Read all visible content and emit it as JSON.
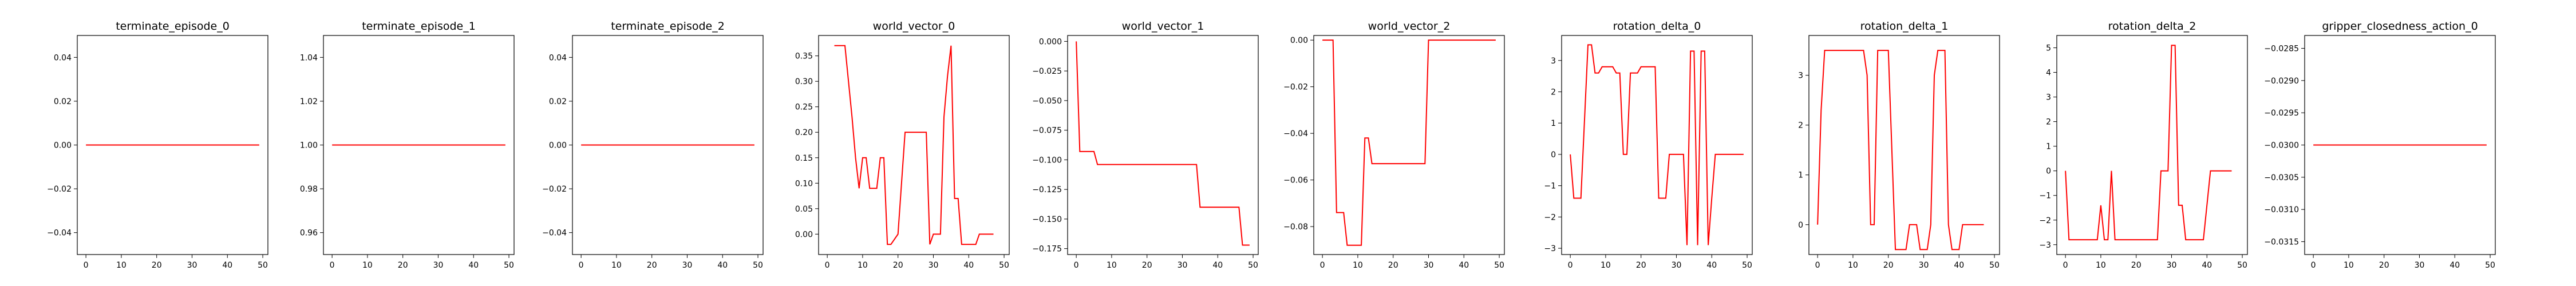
{
  "chart_data": [
    {
      "type": "line",
      "title": "terminate_episode_0",
      "ylim": [
        -0.05,
        0.05
      ],
      "yticks": [
        -0.04,
        -0.02,
        0.0,
        0.02,
        0.04
      ],
      "ytick_labels": [
        "−0.04",
        "−0.02",
        "0.00",
        "0.02",
        "0.04"
      ],
      "xlim": [
        -2.45,
        51.45
      ],
      "xticks": [
        0,
        10,
        20,
        30,
        40,
        50
      ],
      "xtick_labels": [
        "0",
        "10",
        "20",
        "30",
        "40",
        "50"
      ],
      "line_color": "#ff0000",
      "x": [
        0,
        49
      ],
      "y": [
        0,
        0
      ]
    },
    {
      "type": "line",
      "title": "terminate_episode_1",
      "ylim": [
        0.95,
        1.05
      ],
      "yticks": [
        0.96,
        0.98,
        1.0,
        1.02,
        1.04
      ],
      "ytick_labels": [
        "0.96",
        "0.98",
        "1.00",
        "1.02",
        "1.04"
      ],
      "xlim": [
        -2.45,
        51.45
      ],
      "xticks": [
        0,
        10,
        20,
        30,
        40,
        50
      ],
      "xtick_labels": [
        "0",
        "10",
        "20",
        "30",
        "40",
        "50"
      ],
      "line_color": "#ff0000",
      "x": [
        0,
        49
      ],
      "y": [
        1,
        1
      ]
    },
    {
      "type": "line",
      "title": "terminate_episode_2",
      "ylim": [
        -0.05,
        0.05
      ],
      "yticks": [
        -0.04,
        -0.02,
        0.0,
        0.02,
        0.04
      ],
      "ytick_labels": [
        "−0.04",
        "−0.02",
        "0.00",
        "0.02",
        "0.04"
      ],
      "xlim": [
        -2.45,
        51.45
      ],
      "xticks": [
        0,
        10,
        20,
        30,
        40,
        50
      ],
      "xtick_labels": [
        "0",
        "10",
        "20",
        "30",
        "40",
        "50"
      ],
      "line_color": "#ff0000",
      "x": [
        0,
        49
      ],
      "y": [
        0,
        0
      ]
    },
    {
      "type": "line",
      "title": "world_vector_0",
      "ylim": [
        -0.04,
        0.39
      ],
      "yticks": [
        0.0,
        0.05,
        0.1,
        0.15,
        0.2,
        0.25,
        0.3,
        0.35
      ],
      "ytick_labels": [
        "0.00",
        "0.05",
        "0.10",
        "0.15",
        "0.20",
        "0.25",
        "0.30",
        "0.35"
      ],
      "xlim": [
        -2.45,
        51.45
      ],
      "xticks": [
        0,
        10,
        20,
        30,
        40,
        50
      ],
      "xtick_labels": [
        "0",
        "10",
        "20",
        "30",
        "40",
        "50"
      ],
      "line_color": "#ff0000",
      "x": [
        2,
        5,
        7,
        8,
        9,
        10,
        11,
        12,
        13,
        14,
        15,
        16,
        17,
        18,
        20,
        22,
        25,
        26,
        27,
        28,
        29,
        30,
        31,
        32,
        33,
        34,
        35,
        36,
        37,
        38,
        39,
        40,
        41,
        42,
        43,
        44,
        45,
        46,
        47
      ],
      "y": [
        0.37,
        0.37,
        0.23,
        0.15,
        0.09,
        0.15,
        0.15,
        0.09,
        0.09,
        0.09,
        0.15,
        0.15,
        -0.02,
        -0.02,
        0.0,
        0.2,
        0.2,
        0.2,
        0.2,
        0.2,
        -0.02,
        0.0,
        0.0,
        0.0,
        0.23,
        0.31,
        0.37,
        0.07,
        0.07,
        -0.02,
        -0.02,
        -0.02,
        -0.02,
        -0.02,
        0.0,
        0.0,
        0.0,
        0.0,
        0.0
      ]
    },
    {
      "type": "line",
      "title": "world_vector_1",
      "ylim": [
        -0.18,
        0.005
      ],
      "yticks": [
        -0.175,
        -0.15,
        -0.125,
        -0.1,
        -0.075,
        -0.05,
        -0.025,
        0.0
      ],
      "ytick_labels": [
        "−0.175",
        "−0.150",
        "−0.125",
        "−0.100",
        "−0.075",
        "−0.050",
        "−0.025",
        "0.000"
      ],
      "xlim": [
        -2.45,
        51.45
      ],
      "xticks": [
        0,
        10,
        20,
        30,
        40,
        50
      ],
      "xtick_labels": [
        "0",
        "10",
        "20",
        "30",
        "40",
        "50"
      ],
      "line_color": "#ff0000",
      "x": [
        0,
        1,
        5,
        6,
        34,
        35,
        46,
        47,
        49
      ],
      "y": [
        0.0,
        -0.093,
        -0.093,
        -0.104,
        -0.104,
        -0.14,
        -0.14,
        -0.172,
        -0.172
      ]
    },
    {
      "type": "line",
      "title": "world_vector_2",
      "ylim": [
        -0.092,
        0.002
      ],
      "yticks": [
        -0.08,
        -0.06,
        -0.04,
        -0.02,
        0.0
      ],
      "ytick_labels": [
        "−0.08",
        "−0.06",
        "−0.04",
        "−0.02",
        "0.00"
      ],
      "xlim": [
        -2.45,
        51.45
      ],
      "xticks": [
        0,
        10,
        20,
        30,
        40,
        50
      ],
      "xtick_labels": [
        "0",
        "10",
        "20",
        "30",
        "40",
        "50"
      ],
      "line_color": "#ff0000",
      "x": [
        0,
        3,
        4,
        6,
        7,
        9,
        10,
        11,
        12,
        13,
        14,
        15,
        29,
        30,
        49
      ],
      "y": [
        0.0,
        0.0,
        -0.074,
        -0.074,
        -0.088,
        -0.088,
        -0.088,
        -0.088,
        -0.042,
        -0.042,
        -0.053,
        -0.053,
        -0.053,
        0.0,
        0.0
      ]
    },
    {
      "type": "line",
      "title": "rotation_delta_0",
      "ylim": [
        -3.2,
        3.8
      ],
      "yticks": [
        -3,
        -2,
        -1,
        0,
        1,
        2,
        3
      ],
      "ytick_labels": [
        "−3",
        "−2",
        "−1",
        "0",
        "1",
        "2",
        "3"
      ],
      "xlim": [
        -2.45,
        51.45
      ],
      "xticks": [
        0,
        10,
        20,
        30,
        40,
        50
      ],
      "xtick_labels": [
        "0",
        "10",
        "20",
        "30",
        "40",
        "50"
      ],
      "line_color": "#ff0000",
      "x": [
        0,
        1,
        2,
        3,
        5,
        6,
        7,
        8,
        9,
        12,
        13,
        14,
        15,
        16,
        17,
        18,
        19,
        20,
        23,
        24,
        25,
        26,
        27,
        28,
        29,
        30,
        31,
        32,
        33,
        34,
        35,
        36,
        37,
        38,
        39,
        40,
        41,
        42,
        43,
        44,
        45,
        46,
        47,
        49
      ],
      "y": [
        0,
        -1.4,
        -1.4,
        -1.4,
        3.5,
        3.5,
        2.6,
        2.6,
        2.8,
        2.8,
        2.6,
        2.6,
        0,
        0,
        2.6,
        2.6,
        2.6,
        2.8,
        2.8,
        2.8,
        -1.4,
        -1.4,
        -1.4,
        0,
        0,
        0,
        0,
        0,
        -2.9,
        3.3,
        3.3,
        -2.9,
        3.3,
        3.3,
        -2.9,
        -1.4,
        0,
        0,
        0,
        0,
        0,
        0,
        0,
        0
      ]
    },
    {
      "type": "line",
      "title": "rotation_delta_1",
      "ylim": [
        -0.6,
        3.8
      ],
      "yticks": [
        0,
        1,
        2,
        3
      ],
      "ytick_labels": [
        "0",
        "1",
        "2",
        "3"
      ],
      "xlim": [
        -2.45,
        51.45
      ],
      "xticks": [
        0,
        10,
        20,
        30,
        40,
        50
      ],
      "xtick_labels": [
        "0",
        "10",
        "20",
        "30",
        "40",
        "50"
      ],
      "line_color": "#ff0000",
      "x": [
        0,
        1,
        2,
        5,
        10,
        13,
        14,
        15,
        16,
        17,
        18,
        19,
        20,
        22,
        23,
        24,
        25,
        26,
        27,
        28,
        29,
        30,
        31,
        32,
        33,
        34,
        35,
        36,
        37,
        38,
        39,
        40,
        41,
        42,
        43,
        44,
        45,
        47
      ],
      "y": [
        0,
        2.3,
        3.5,
        3.5,
        3.5,
        3.5,
        3.0,
        0.0,
        0.0,
        3.5,
        3.5,
        3.5,
        3.5,
        -0.5,
        -0.5,
        -0.5,
        -0.5,
        0.0,
        0.0,
        0.0,
        -0.5,
        -0.5,
        -0.5,
        0.0,
        3.0,
        3.5,
        3.5,
        3.5,
        0.0,
        -0.5,
        -0.5,
        -0.5,
        0.0,
        0.0,
        0.0,
        0.0,
        0.0,
        0.0
      ]
    },
    {
      "type": "line",
      "title": "rotation_delta_2",
      "ylim": [
        -3.4,
        5.5
      ],
      "yticks": [
        -3,
        -2,
        -1,
        0,
        1,
        2,
        3,
        4,
        5
      ],
      "ytick_labels": [
        "−3",
        "−2",
        "−1",
        "0",
        "1",
        "2",
        "3",
        "4",
        "5"
      ],
      "xlim": [
        -2.45,
        51.45
      ],
      "xticks": [
        0,
        10,
        20,
        30,
        40,
        50
      ],
      "xtick_labels": [
        "0",
        "10",
        "20",
        "30",
        "40",
        "50"
      ],
      "line_color": "#ff0000",
      "x": [
        0,
        1,
        2,
        5,
        8,
        9,
        10,
        11,
        12,
        13,
        14,
        15,
        16,
        17,
        18,
        20,
        23,
        24,
        25,
        26,
        27,
        28,
        29,
        30,
        31,
        32,
        33,
        34,
        35,
        36,
        37,
        38,
        39,
        40,
        41,
        42,
        43,
        44,
        45,
        47
      ],
      "y": [
        0,
        -2.8,
        -2.8,
        -2.8,
        -2.8,
        -2.8,
        -1.4,
        -2.8,
        -2.8,
        0,
        -2.8,
        -2.8,
        -2.8,
        -2.8,
        -2.8,
        -2.8,
        -2.8,
        -2.8,
        -2.8,
        -2.8,
        0,
        0,
        0,
        5.1,
        5.1,
        -1.4,
        -1.4,
        -2.8,
        -2.8,
        -2.8,
        -2.8,
        -2.8,
        -2.8,
        -1.4,
        0,
        0,
        0,
        0,
        0,
        0
      ]
    },
    {
      "type": "line",
      "title": "gripper_closedness_action_0",
      "ylim": [
        -0.0317,
        -0.0283
      ],
      "yticks": [
        -0.0315,
        -0.031,
        -0.0305,
        -0.03,
        -0.0295,
        -0.029,
        -0.0285
      ],
      "ytick_labels": [
        "−0.0315",
        "−0.0310",
        "−0.0305",
        "−0.0300",
        "−0.0295",
        "−0.0290",
        "−0.0285"
      ],
      "xlim": [
        -2.45,
        51.45
      ],
      "xticks": [
        0,
        10,
        20,
        30,
        40,
        50
      ],
      "xtick_labels": [
        "0",
        "10",
        "20",
        "30",
        "40",
        "50"
      ],
      "line_color": "#ff0000",
      "x": [
        0,
        49
      ],
      "y": [
        -0.03,
        -0.03
      ]
    }
  ]
}
